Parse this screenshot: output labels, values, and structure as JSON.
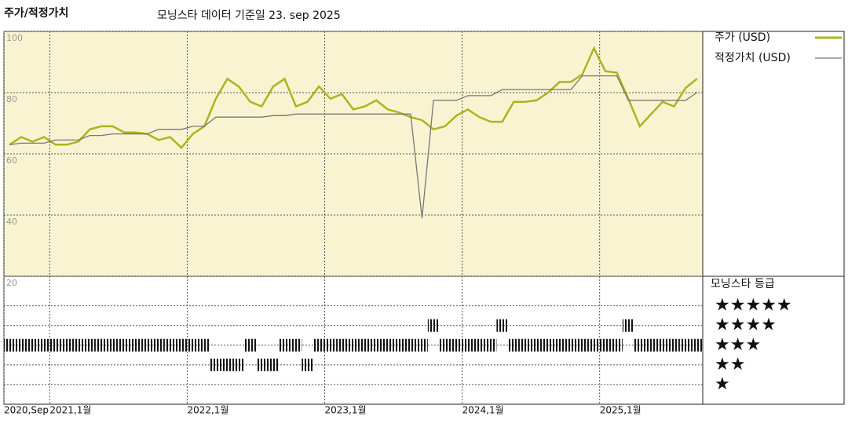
{
  "chart_data": [
    {
      "type": "line",
      "title": "주가/적정가치",
      "subtitle": "모닝스타 데이터 기준일 23. sep 2025",
      "x": [
        "2020-09",
        "2020-10",
        "2020-11",
        "2020-12",
        "2021-01",
        "2021-02",
        "2021-03",
        "2021-04",
        "2021-05",
        "2021-06",
        "2021-07",
        "2021-08",
        "2021-09",
        "2021-10",
        "2021-11",
        "2021-12",
        "2022-01",
        "2022-02",
        "2022-03",
        "2022-04",
        "2022-05",
        "2022-06",
        "2022-07",
        "2022-08",
        "2022-09",
        "2022-10",
        "2022-11",
        "2022-12",
        "2023-01",
        "2023-02",
        "2023-03",
        "2023-04",
        "2023-05",
        "2023-06",
        "2023-07",
        "2023-08",
        "2023-09",
        "2023-10",
        "2023-11",
        "2023-12",
        "2024-01",
        "2024-02",
        "2024-03",
        "2024-04",
        "2024-05",
        "2024-06",
        "2024-07",
        "2024-08",
        "2024-09",
        "2024-10",
        "2024-11",
        "2024-12",
        "2025-01",
        "2025-02",
        "2025-03",
        "2025-04",
        "2025-05",
        "2025-06",
        "2025-07",
        "2025-08",
        "2025-09"
      ],
      "series": [
        {
          "name": "주가 (USD)",
          "color": "#aab51e",
          "values": [
            63,
            65.5,
            64,
            65.5,
            63,
            63,
            64,
            68,
            69,
            69,
            67,
            67,
            66.5,
            64.5,
            65.5,
            62,
            66.5,
            69,
            78,
            84.5,
            82,
            77,
            75.5,
            82,
            84.5,
            75.5,
            77,
            82,
            78,
            79.5,
            74.5,
            75.5,
            77.5,
            74.5,
            73.5,
            72,
            71,
            68,
            69,
            72.5,
            74.5,
            72,
            70.5,
            70.5,
            77,
            77,
            77.5,
            80,
            83.5,
            83.5,
            86,
            94.5,
            87,
            86.5,
            78,
            69,
            73,
            77,
            75.5,
            81.5,
            84.5
          ]
        },
        {
          "name": "적정가치 (USD)",
          "color": "#777777",
          "values": [
            63,
            63.5,
            63.5,
            63.5,
            64.5,
            64.5,
            64.5,
            66,
            66,
            66.5,
            66.5,
            66.5,
            66.5,
            68,
            68,
            68,
            69,
            69,
            72,
            72,
            72,
            72,
            72,
            72.5,
            72.5,
            73,
            73,
            73,
            73,
            73,
            73,
            73,
            73,
            73,
            73,
            73,
            39,
            77.5,
            77.5,
            77.5,
            79,
            79,
            79,
            81,
            81,
            81,
            81,
            81,
            81,
            81,
            85.5,
            85.5,
            85.5,
            85.5,
            77.5,
            77.5,
            77.5,
            77.5,
            77.5,
            77.5,
            80
          ]
        }
      ],
      "xlim": [
        "2020-09",
        "2025-10"
      ],
      "ylim": [
        20,
        100
      ],
      "yticks": [
        20,
        40,
        60,
        80,
        100
      ],
      "grid": true
    },
    {
      "type": "rating",
      "title": "모닝스타 등급",
      "values": [
        3,
        3,
        3,
        3,
        3,
        3,
        3,
        3,
        3,
        3,
        3,
        3,
        3,
        3,
        3,
        3,
        3,
        3,
        2,
        2,
        2,
        3,
        2,
        2,
        3,
        3,
        2,
        3,
        3,
        3,
        3,
        3,
        3,
        3,
        3,
        3,
        3,
        4,
        3,
        3,
        3,
        3,
        3,
        4,
        3,
        3,
        3,
        3,
        3,
        3,
        3,
        3,
        3,
        3,
        4,
        3,
        3,
        3,
        3,
        3,
        3
      ],
      "color": "#222222",
      "ylim": [
        0,
        6.5
      ],
      "yticks": [
        {
          "value": 5,
          "label": "★★★★★"
        },
        {
          "value": 4,
          "label": "★★★★"
        },
        {
          "value": 3,
          "label": "★★★"
        },
        {
          "value": 2,
          "label": "★★"
        },
        {
          "value": 1,
          "label": "★"
        }
      ],
      "xticks": [
        {
          "value": "2020-09",
          "label": "2020,Sep"
        },
        {
          "value": "2021-01",
          "label": "2021,1월"
        },
        {
          "value": "2022-01",
          "label": "2022,1월"
        },
        {
          "value": "2023-01",
          "label": "2023,1월"
        },
        {
          "value": "2024-01",
          "label": "2024,1월"
        },
        {
          "value": "2025-01",
          "label": "2025,1월"
        }
      ]
    }
  ]
}
